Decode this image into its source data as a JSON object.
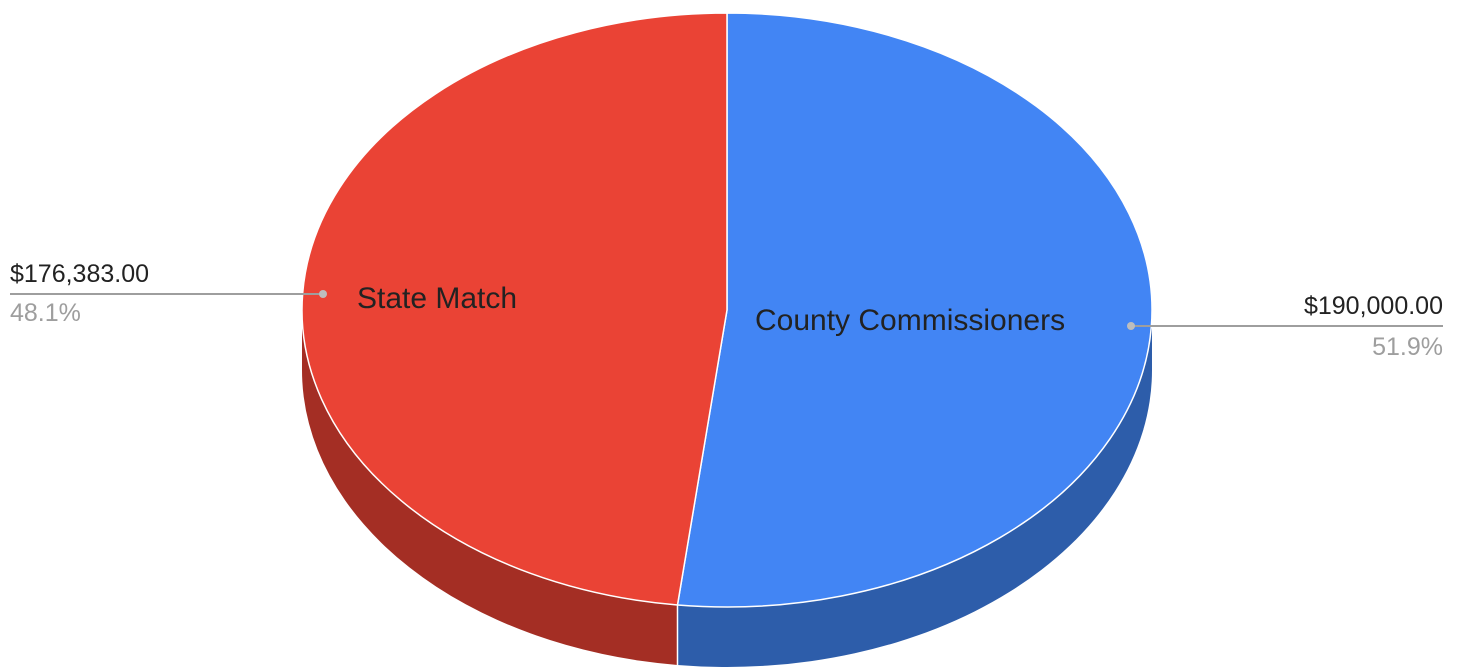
{
  "chart_data": {
    "type": "pie",
    "style": "3d",
    "categories": [
      "County Commissioners",
      "State Match"
    ],
    "values": [
      190000,
      176383
    ],
    "value_labels": [
      "$190,000.00",
      "$176,383.00"
    ],
    "percent_labels": [
      "51.9%",
      "48.1%"
    ],
    "colors": [
      "#4285F4",
      "#EA4335"
    ],
    "side_colors": [
      "#2D5DAA",
      "#A42E24"
    ],
    "title": "",
    "legend": "none"
  }
}
